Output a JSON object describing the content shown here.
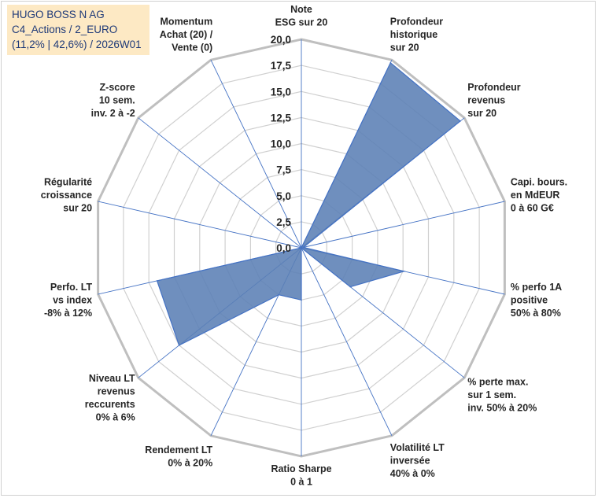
{
  "header": {
    "line1": "HUGO BOSS N AG",
    "line2": "C4_Actions / 2_EURO",
    "line3": "(11,2% | 42,6%) / 2026W01"
  },
  "colors": {
    "fill": "#5b80b5",
    "stroke": "#4472c4",
    "grid": "#d0d0d0",
    "outer": "#bfbfbf",
    "spoke": "#4472c4"
  },
  "chart_data": {
    "type": "radar",
    "rmin": 0,
    "rmax": 20,
    "step": 2.5,
    "ticks": [
      "0,0",
      "2,5",
      "5,0",
      "7,5",
      "10,0",
      "12,5",
      "15,0",
      "17,5",
      "20,0"
    ],
    "axes": [
      {
        "label": [
          "Note",
          "ESG sur 20"
        ],
        "value": 0
      },
      {
        "label": [
          "Profondeur",
          "historique",
          "sur 20"
        ],
        "value": 19.7
      },
      {
        "label": [
          "Profondeur",
          "revenus",
          "sur 20"
        ],
        "value": 19.5
      },
      {
        "label": [
          "Capi. bours.",
          "en MdEUR",
          "0 à 60 G€"
        ],
        "value": 0.2
      },
      {
        "label": [
          "% perfo 1A",
          "positive",
          "50% à 80%"
        ],
        "value": 10.1
      },
      {
        "label": [
          "% perte max.",
          "sur 1 sem.",
          "inv. 50% à 20%"
        ],
        "value": 6.0
      },
      {
        "label": [
          "Volatilité LT",
          "inversée",
          "40% à 0%"
        ],
        "value": 0
      },
      {
        "label": [
          "Ratio Sharpe",
          "0 à 1"
        ],
        "value": 5.0
      },
      {
        "label": [
          "Rendement LT",
          "0% à 20%"
        ],
        "value": 5.0
      },
      {
        "label": [
          "Niveau LT",
          "revenus",
          "reccurents",
          "0% à 6%"
        ],
        "value": 15.0
      },
      {
        "label": [
          "Perfo. LT",
          "vs index",
          "-8% à 12%"
        ],
        "value": 14.2
      },
      {
        "label": [
          "Régularité",
          "croissance",
          "sur 20"
        ],
        "value": 0
      },
      {
        "label": [
          "Z-score",
          "10 sem.",
          "inv. 2 à -2"
        ],
        "value": 0
      },
      {
        "label": [
          "Momentum",
          "Achat (20) /",
          "Vente (0)"
        ],
        "value": 0
      }
    ]
  }
}
